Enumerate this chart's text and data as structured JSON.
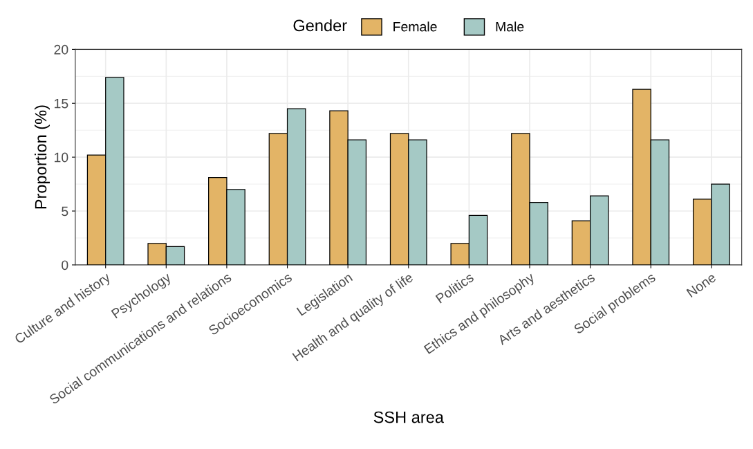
{
  "chart_data": {
    "type": "bar",
    "xlabel": "SSH area",
    "ylabel": "Proportion (%)",
    "legend_title": "Gender",
    "categories": [
      "Culture and history",
      "Psychology",
      "Social communications and relations",
      "Socioeconomics",
      "Legislation",
      "Health and quality of life",
      "Politics",
      "Ethics and philosophy",
      "Arts and aesthetics",
      "Social problems",
      "None"
    ],
    "series": [
      {
        "name": "Female",
        "color": "#e3b466",
        "values": [
          10.2,
          2.0,
          8.1,
          12.2,
          14.3,
          12.2,
          2.0,
          12.2,
          4.1,
          16.3,
          6.1
        ]
      },
      {
        "name": "Male",
        "color": "#a5c9c5",
        "values": [
          17.4,
          1.7,
          7.0,
          14.5,
          11.6,
          11.6,
          4.6,
          5.8,
          6.4,
          11.6,
          7.5
        ]
      }
    ],
    "ylim": [
      0,
      20
    ],
    "yticks": [
      0,
      5,
      10,
      15,
      20
    ],
    "grid": true,
    "legend": "top"
  }
}
